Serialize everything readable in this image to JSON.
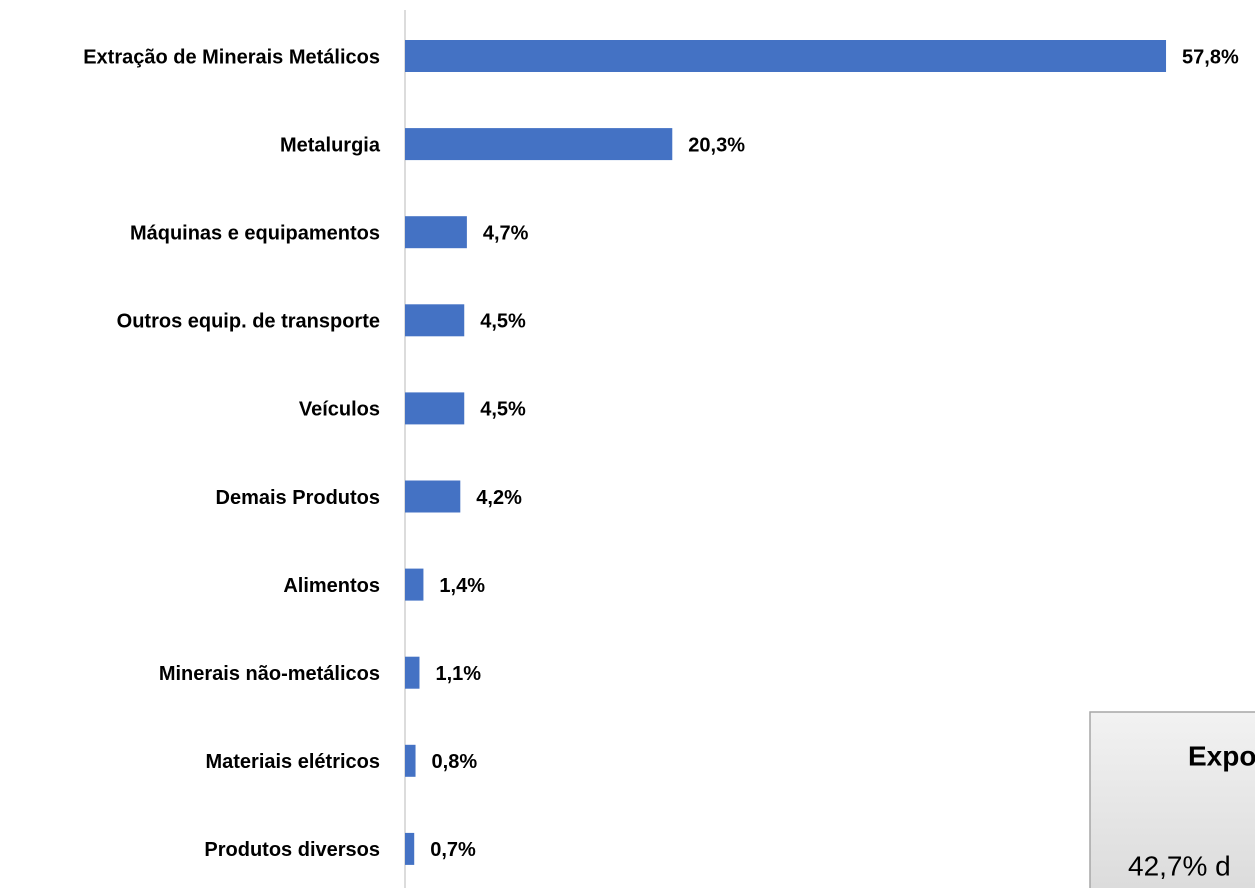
{
  "chart_data": {
    "type": "bar",
    "orientation": "horizontal",
    "categories": [
      "Extração de Minerais Metálicos",
      "Metalurgia",
      "Máquinas e equipamentos",
      "Outros equip. de transporte",
      "Veículos",
      "Demais Produtos",
      "Alimentos",
      "Minerais não-metálicos",
      "Materiais elétricos",
      "Produtos diversos"
    ],
    "values": [
      57.8,
      20.3,
      4.7,
      4.5,
      4.5,
      4.2,
      1.4,
      1.1,
      0.8,
      0.7
    ],
    "value_labels": [
      "57,8%",
      "20,3%",
      "4,7%",
      "4,5%",
      "4,5%",
      "4,2%",
      "1,4%",
      "1,1%",
      "0,8%",
      "0,7%"
    ],
    "color": "#4472c4",
    "xlim": [
      0,
      60
    ],
    "annotations": [
      "Expo",
      "42,7% d"
    ]
  }
}
